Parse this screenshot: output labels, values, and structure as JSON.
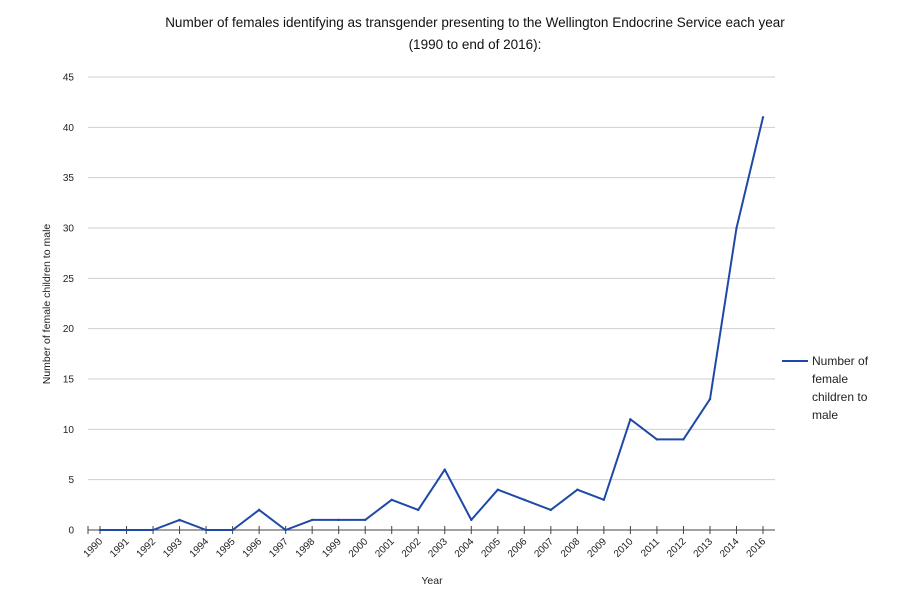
{
  "chart_data": {
    "type": "line",
    "title": "Number of females identifying as transgender presenting to the Wellington Endocrine Service each year",
    "subtitle": "(1990 to end of 2016):",
    "xlabel": "Year",
    "ylabel": "Number of female children to male",
    "ylim": [
      0,
      45
    ],
    "yticks": [
      "0",
      "5",
      "10",
      "15",
      "20",
      "25",
      "30",
      "35",
      "40",
      "45"
    ],
    "grid": true,
    "legend_position": "right",
    "color": "#1f49a8",
    "x": [
      "1990",
      "1991",
      "1992",
      "1993",
      "1994",
      "1995",
      "1996",
      "1997",
      "1998",
      "1999",
      "2000",
      "2001",
      "2002",
      "2003",
      "2004",
      "2005",
      "2006",
      "2007",
      "2008",
      "2009",
      "2010",
      "2011",
      "2012",
      "2013",
      "2014",
      "2016"
    ],
    "series": [
      {
        "name": "Number of female children to male",
        "legend_lines": [
          "Number of",
          "female",
          "children to",
          "male"
        ],
        "values": [
          0,
          0,
          0,
          1,
          0,
          0,
          2,
          0,
          1,
          1,
          1,
          3,
          2,
          6,
          1,
          4,
          3,
          2,
          4,
          3,
          11,
          9,
          9,
          13,
          30,
          41
        ]
      }
    ]
  }
}
